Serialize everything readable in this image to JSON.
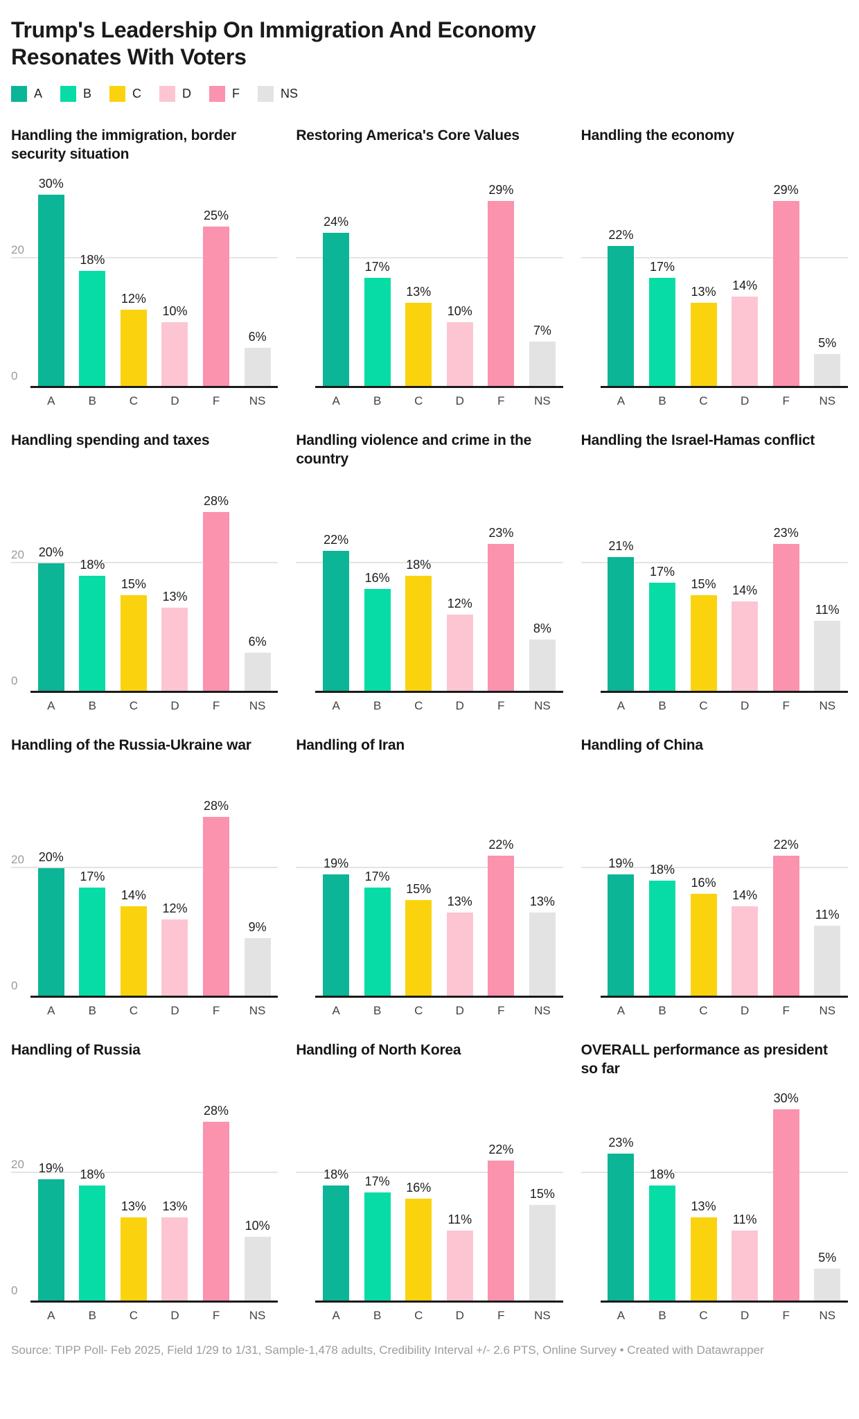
{
  "header": {
    "title_line1": "Trump's Leadership On Immigration And Economy",
    "title_line2": "Resonates With Voters"
  },
  "chart_data": {
    "type": "bar",
    "title": "Trump's Leadership On Immigration And Economy Resonates With Voters",
    "categories": [
      "A",
      "B",
      "C",
      "D",
      "F",
      "NS"
    ],
    "colors": [
      "#0bb596",
      "#08dca6",
      "#fbd20e",
      "#fdc5d2",
      "#fb92ae",
      "#e3e3e3"
    ],
    "unit": "%",
    "ylim": [
      0,
      31
    ],
    "yticks": [
      0,
      20
    ],
    "grid": "horizontal gridline at 20, dark baseline at 0",
    "legend_position": "top",
    "value_labels": "above bars, formatted as percent",
    "panels": [
      {
        "title": "Handling the immigration, border security situation",
        "values": [
          30,
          18,
          12,
          10,
          25,
          6
        ]
      },
      {
        "title": "Restoring America's Core Values",
        "values": [
          24,
          17,
          13,
          10,
          29,
          7
        ]
      },
      {
        "title": "Handling the economy",
        "values": [
          22,
          17,
          13,
          14,
          29,
          5
        ]
      },
      {
        "title": "Handling spending and taxes",
        "values": [
          20,
          18,
          15,
          13,
          28,
          6
        ]
      },
      {
        "title": "Handling violence and crime in the country",
        "values": [
          22,
          16,
          18,
          12,
          23,
          8
        ]
      },
      {
        "title": "Handling the Israel-Hamas conflict",
        "values": [
          21,
          17,
          15,
          14,
          23,
          11
        ]
      },
      {
        "title": "Handling of the Russia-Ukraine war",
        "values": [
          20,
          17,
          14,
          12,
          28,
          9
        ]
      },
      {
        "title": "Handling of Iran",
        "values": [
          19,
          17,
          15,
          13,
          22,
          13
        ]
      },
      {
        "title": "Handling of China",
        "values": [
          19,
          18,
          16,
          14,
          22,
          11
        ]
      },
      {
        "title": "Handling of Russia",
        "values": [
          19,
          18,
          13,
          13,
          28,
          10
        ]
      },
      {
        "title": "Handling of North Korea",
        "values": [
          18,
          17,
          16,
          11,
          22,
          15
        ]
      },
      {
        "title": "OVERALL performance as president so far",
        "values": [
          23,
          18,
          13,
          11,
          30,
          5
        ]
      }
    ]
  },
  "footer": {
    "source": "Source: TIPP Poll- Feb 2025, Field 1/29 to 1/31, Sample-1,478 adults, Credibility Interval +/- 2.6 PTS, Online Survey • Created with Datawrapper"
  }
}
